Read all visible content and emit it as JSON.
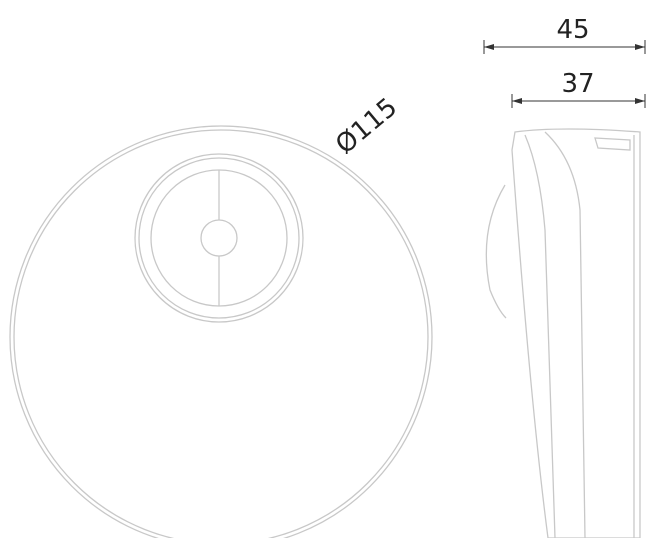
{
  "dimensions": {
    "diameter": "Ø115",
    "width": "45",
    "depth": "37"
  }
}
